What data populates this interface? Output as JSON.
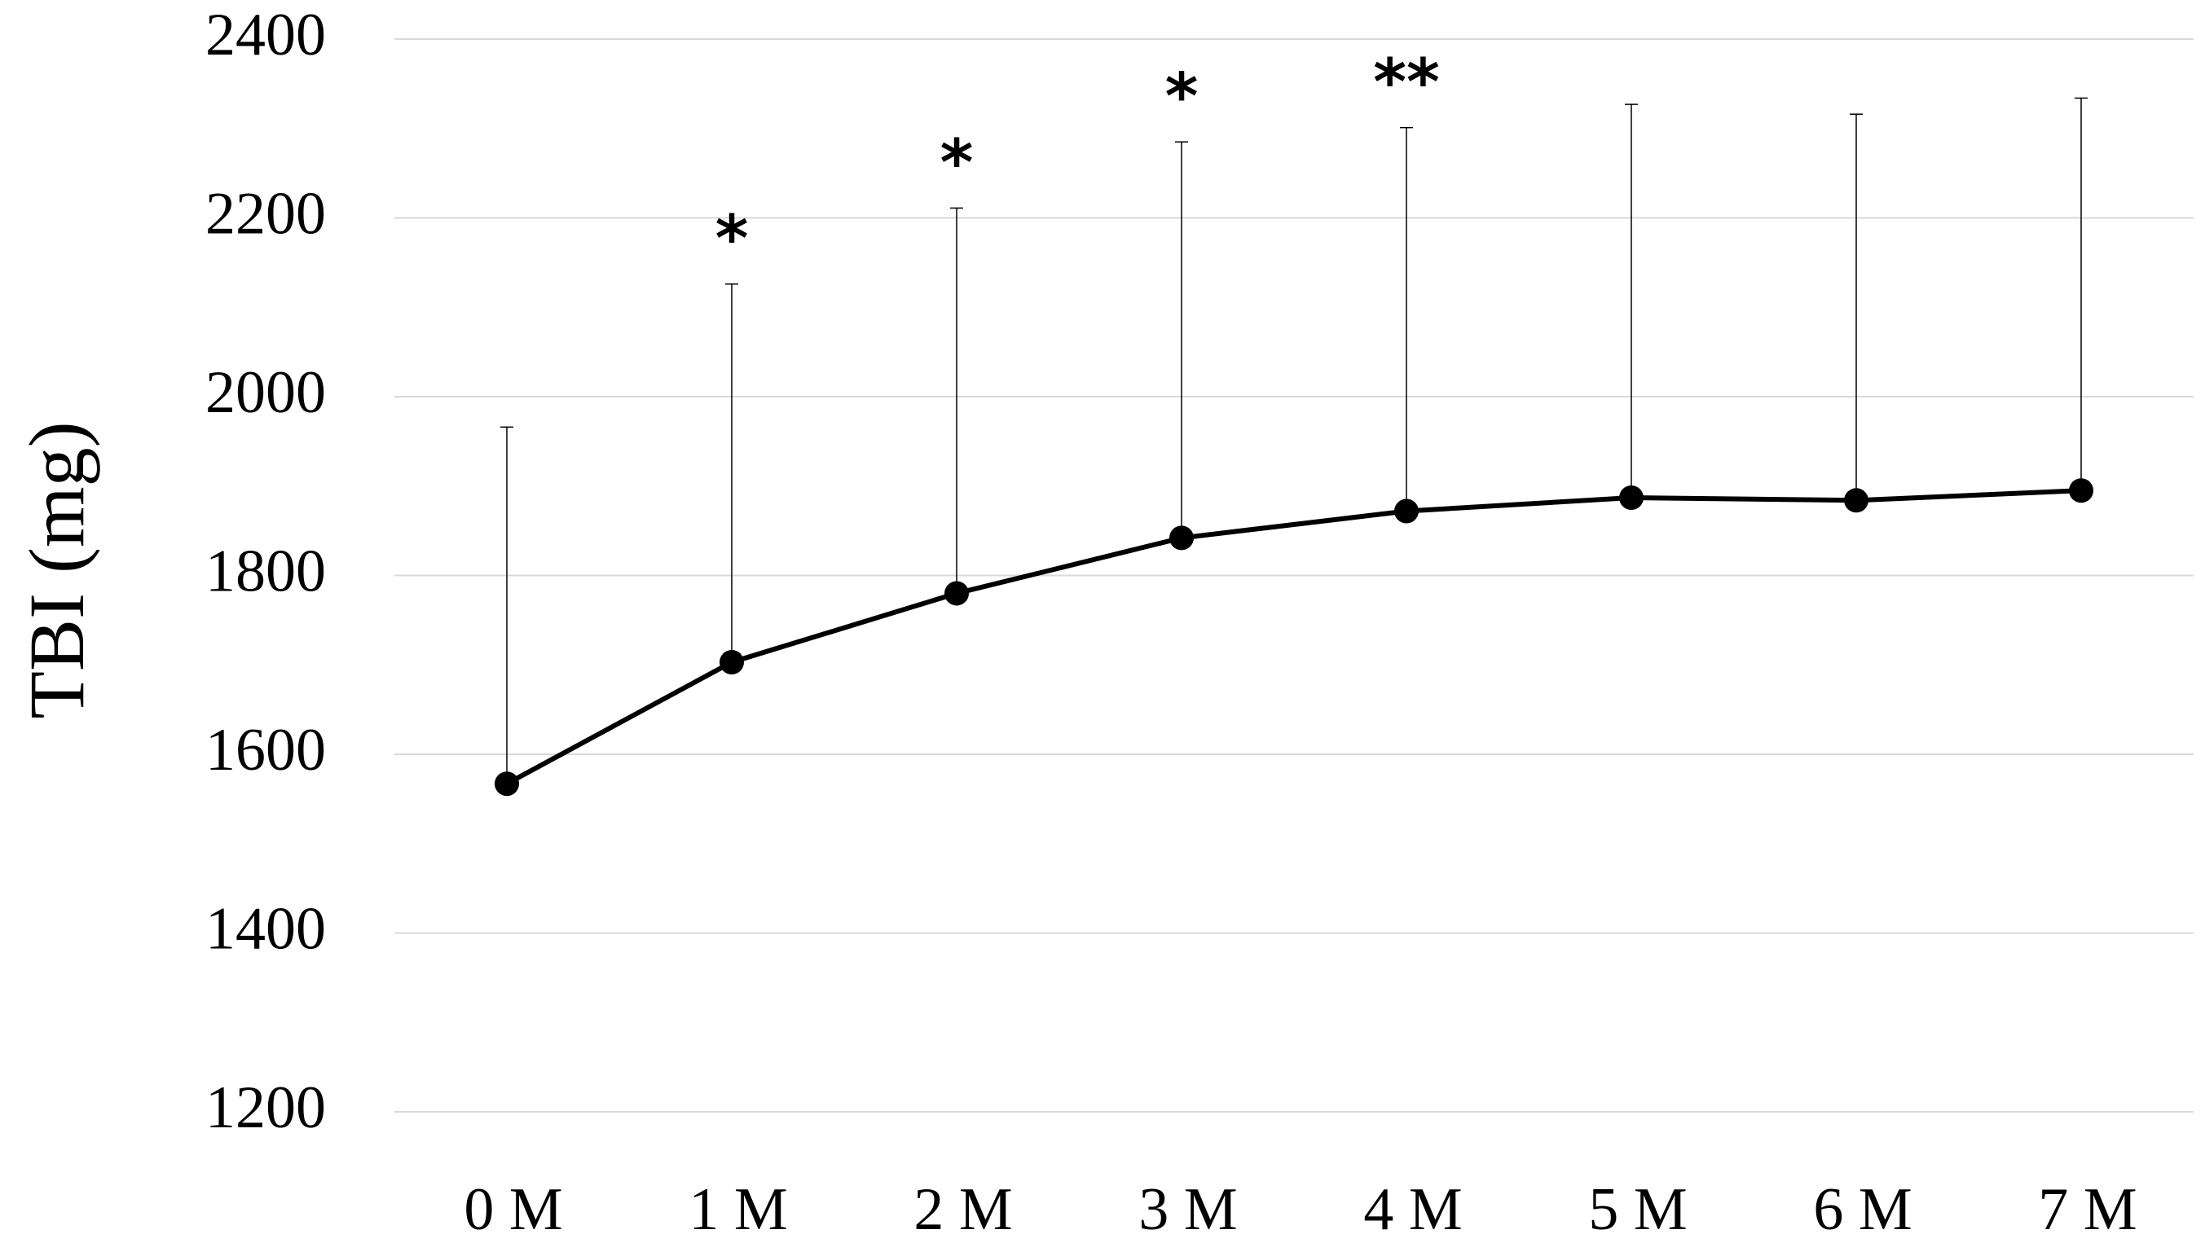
{
  "chart_data": {
    "type": "line",
    "y_label": "TBI (mg)",
    "categories": [
      "0 M",
      "1 M",
      "2 M",
      "3 M",
      "4 M",
      "5 M",
      "6 M",
      "7 M"
    ],
    "values": [
      1567,
      1703,
      1780,
      1842,
      1872,
      1887,
      1884,
      1895
    ],
    "errors": [
      399,
      423,
      431,
      443,
      429,
      440,
      432,
      439
    ],
    "annotations": [
      null,
      "*",
      "*",
      "*",
      "**",
      null,
      null,
      null
    ],
    "color": "#000000",
    "ylim": [
      1200,
      2400
    ],
    "yticks": [
      1200,
      1400,
      1600,
      1800,
      2000,
      2200,
      2400
    ],
    "grid": true
  }
}
